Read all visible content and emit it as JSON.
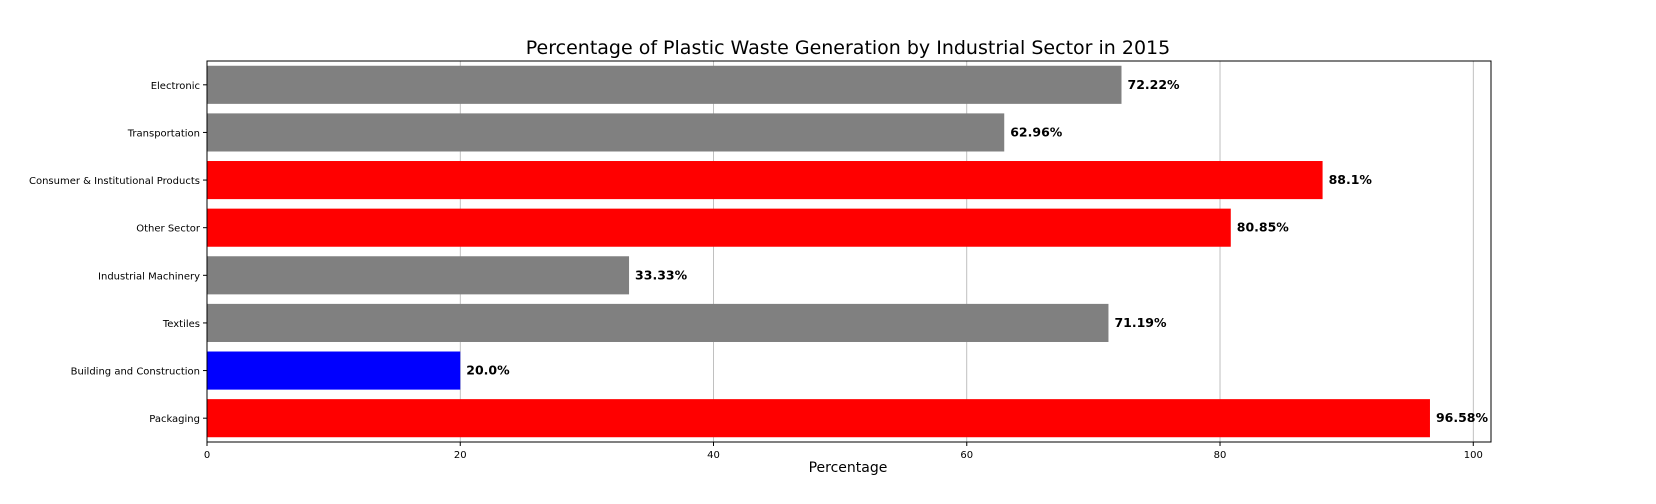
{
  "chart_data": {
    "type": "bar",
    "orientation": "horizontal",
    "title": "Percentage of Plastic Waste Generation by Industrial Sector in 2015",
    "xlabel": "Percentage",
    "ylabel": "",
    "xlim": [
      0,
      101.4
    ],
    "xticks": [
      0,
      20,
      40,
      60,
      80,
      100
    ],
    "grid": "x",
    "categories": [
      "Electronic",
      "Transportation",
      "Consumer & Institutional Products",
      "Other Sector",
      "Industrial Machinery",
      "Textiles",
      "Building and Construction",
      "Packaging"
    ],
    "values": [
      72.22,
      62.96,
      88.1,
      80.85,
      33.33,
      71.19,
      20.0,
      96.58
    ],
    "value_labels": [
      "72.22%",
      "62.96%",
      "88.1%",
      "80.85%",
      "33.33%",
      "71.19%",
      "20.0%",
      "96.58%"
    ],
    "colors": [
      "#808080",
      "#808080",
      "#ff0000",
      "#ff0000",
      "#808080",
      "#808080",
      "#0000ff",
      "#ff0000"
    ]
  }
}
